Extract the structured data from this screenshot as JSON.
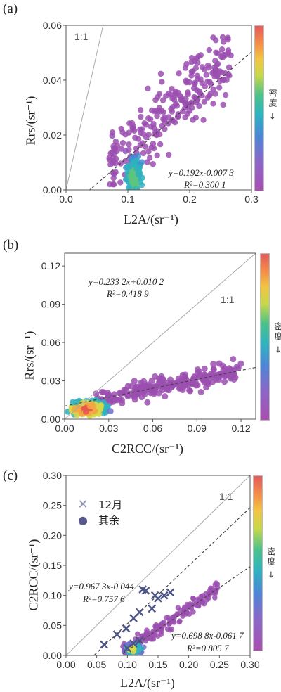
{
  "colors": {
    "point": "#8e4fae",
    "grid_line": "#aaaaaa",
    "fit_line": "#444444"
  },
  "chart_data": [
    {
      "panel_label": "(a)",
      "type": "scatter",
      "xlabel": "L2A/(sr⁻¹)",
      "ylabel": "Rrs/(sr⁻¹)",
      "xlim": [
        0.0,
        0.3
      ],
      "ylim": [
        0.0,
        0.06
      ],
      "xticks": [
        "0.0",
        "0.1",
        "0.2",
        "0.3"
      ],
      "yticks": [
        "0.00",
        "0.02",
        "0.04",
        "0.06"
      ],
      "one_to_one_label": "1:1",
      "equation": "y=0.192x-0.007 3",
      "r2": "R²=0.300 1",
      "fit": {
        "slope": 0.192,
        "intercept": -0.0073
      },
      "colorbar_label": "密度 →",
      "point_cloud": {
        "x_range": [
          0.06,
          0.28
        ],
        "y_range": [
          0.0,
          0.055
        ],
        "dense_center": [
          0.11,
          0.004
        ]
      }
    },
    {
      "panel_label": "(b)",
      "type": "scatter",
      "xlabel": "C2RCC/(sr⁻¹)",
      "ylabel": "Rrs/(sr⁻¹)",
      "xlim": [
        0.0,
        0.13
      ],
      "ylim": [
        0.0,
        0.13
      ],
      "xticks": [
        "0.00",
        "0.03",
        "0.06",
        "0.09",
        "0.12"
      ],
      "yticks": [
        "0.00",
        "0.03",
        "0.06",
        "0.09",
        "0.12"
      ],
      "one_to_one_label": "1:1",
      "equation": "y=0.233 2x+0.010 2",
      "r2": "R²=0.418 9",
      "fit": {
        "slope": 0.2332,
        "intercept": 0.0102
      },
      "colorbar_label": "密度 →",
      "point_cloud": {
        "x_range": [
          0.0,
          0.12
        ],
        "y_range": [
          0.0,
          0.056
        ],
        "dense_center": [
          0.015,
          0.008
        ]
      }
    },
    {
      "panel_label": "(c)",
      "type": "scatter",
      "xlabel": "L2A/(sr⁻¹)",
      "ylabel": "C2RCC/(sr⁻¹)",
      "xlim": [
        0.0,
        0.3
      ],
      "ylim": [
        0.0,
        0.3
      ],
      "xticks": [
        "0.00",
        "0.05",
        "0.10",
        "0.15",
        "0.20",
        "0.25",
        "0.30"
      ],
      "yticks": [
        "0.00",
        "0.05",
        "0.10",
        "0.15",
        "0.20",
        "0.25",
        "0.30"
      ],
      "one_to_one_label": "1:1",
      "legend": [
        "12月",
        "其余"
      ],
      "equation_1": "y=0.967 3x-0.044",
      "r2_1": "R²=0.757 6",
      "fit_1": {
        "slope": 0.9673,
        "intercept": -0.044
      },
      "equation_2": "y=0.698 8x-0.061 7",
      "r2_2": "R²=0.805 7",
      "fit_2": {
        "slope": 0.6988,
        "intercept": -0.0617
      },
      "colorbar_label": "密度 →",
      "december_points": [
        [
          0.062,
          0.018
        ],
        [
          0.083,
          0.035
        ],
        [
          0.098,
          0.045
        ],
        [
          0.11,
          0.062
        ],
        [
          0.12,
          0.072
        ],
        [
          0.125,
          0.11
        ],
        [
          0.13,
          0.108
        ],
        [
          0.14,
          0.078
        ],
        [
          0.145,
          0.1
        ],
        [
          0.15,
          0.095
        ],
        [
          0.16,
          0.1
        ],
        [
          0.17,
          0.105
        ],
        [
          0.12,
          0.025
        ],
        [
          0.11,
          0.02
        ],
        [
          0.1,
          0.012
        ]
      ]
    }
  ]
}
